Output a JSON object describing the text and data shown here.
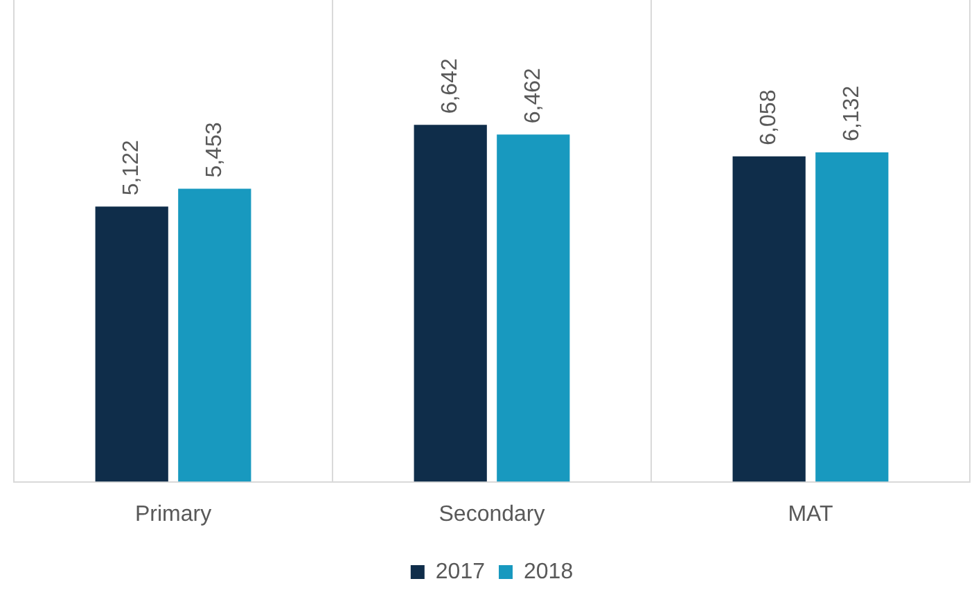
{
  "chart_data": {
    "type": "bar",
    "categories": [
      "Primary",
      "Secondary",
      "MAT"
    ],
    "series": [
      {
        "name": "2017",
        "color": "#0f2d4a",
        "values": [
          5122,
          6642,
          6058
        ],
        "value_labels": [
          "5,122",
          "6,642",
          "6,058"
        ]
      },
      {
        "name": "2018",
        "color": "#1899bf",
        "values": [
          5453,
          6462,
          6132
        ],
        "value_labels": [
          "5,453",
          "6,462",
          "6,132"
        ]
      }
    ],
    "grid": "x",
    "legend": "bottom"
  }
}
